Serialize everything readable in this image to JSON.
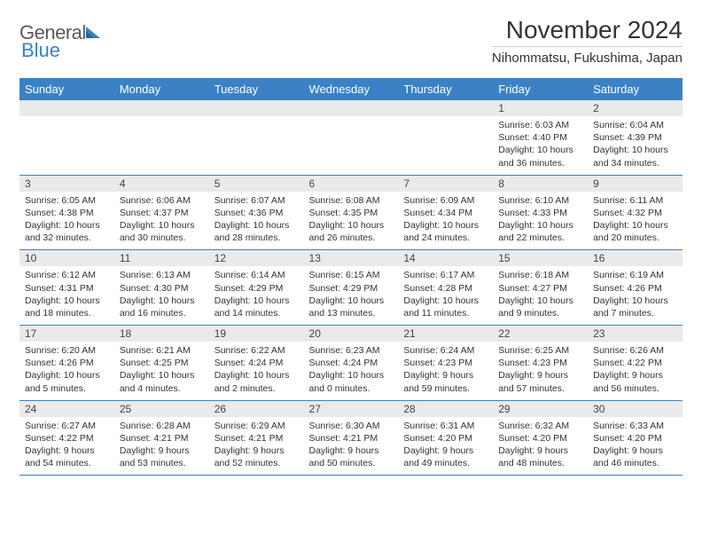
{
  "logo": {
    "text_gray": "General",
    "text_blue": "Blue"
  },
  "title": "November 2024",
  "location": "Nihommatsu, Fukushima, Japan",
  "colors": {
    "header_bg": "#3b82c4",
    "header_text": "#ffffff",
    "daynum_bg": "#eaeaea",
    "border": "#3b82c4",
    "text": "#333333",
    "logo_gray": "#5a5a5a",
    "logo_blue": "#3b82c4"
  },
  "typography": {
    "title_fontsize": 28,
    "location_fontsize": 15,
    "weekday_fontsize": 13,
    "daynum_fontsize": 12,
    "detail_fontsize": 10.5
  },
  "weekdays": [
    "Sunday",
    "Monday",
    "Tuesday",
    "Wednesday",
    "Thursday",
    "Friday",
    "Saturday"
  ],
  "weeks": [
    [
      null,
      null,
      null,
      null,
      null,
      {
        "day": "1",
        "sunrise": "Sunrise: 6:03 AM",
        "sunset": "Sunset: 4:40 PM",
        "daylight": "Daylight: 10 hours and 36 minutes."
      },
      {
        "day": "2",
        "sunrise": "Sunrise: 6:04 AM",
        "sunset": "Sunset: 4:39 PM",
        "daylight": "Daylight: 10 hours and 34 minutes."
      }
    ],
    [
      {
        "day": "3",
        "sunrise": "Sunrise: 6:05 AM",
        "sunset": "Sunset: 4:38 PM",
        "daylight": "Daylight: 10 hours and 32 minutes."
      },
      {
        "day": "4",
        "sunrise": "Sunrise: 6:06 AM",
        "sunset": "Sunset: 4:37 PM",
        "daylight": "Daylight: 10 hours and 30 minutes."
      },
      {
        "day": "5",
        "sunrise": "Sunrise: 6:07 AM",
        "sunset": "Sunset: 4:36 PM",
        "daylight": "Daylight: 10 hours and 28 minutes."
      },
      {
        "day": "6",
        "sunrise": "Sunrise: 6:08 AM",
        "sunset": "Sunset: 4:35 PM",
        "daylight": "Daylight: 10 hours and 26 minutes."
      },
      {
        "day": "7",
        "sunrise": "Sunrise: 6:09 AM",
        "sunset": "Sunset: 4:34 PM",
        "daylight": "Daylight: 10 hours and 24 minutes."
      },
      {
        "day": "8",
        "sunrise": "Sunrise: 6:10 AM",
        "sunset": "Sunset: 4:33 PM",
        "daylight": "Daylight: 10 hours and 22 minutes."
      },
      {
        "day": "9",
        "sunrise": "Sunrise: 6:11 AM",
        "sunset": "Sunset: 4:32 PM",
        "daylight": "Daylight: 10 hours and 20 minutes."
      }
    ],
    [
      {
        "day": "10",
        "sunrise": "Sunrise: 6:12 AM",
        "sunset": "Sunset: 4:31 PM",
        "daylight": "Daylight: 10 hours and 18 minutes."
      },
      {
        "day": "11",
        "sunrise": "Sunrise: 6:13 AM",
        "sunset": "Sunset: 4:30 PM",
        "daylight": "Daylight: 10 hours and 16 minutes."
      },
      {
        "day": "12",
        "sunrise": "Sunrise: 6:14 AM",
        "sunset": "Sunset: 4:29 PM",
        "daylight": "Daylight: 10 hours and 14 minutes."
      },
      {
        "day": "13",
        "sunrise": "Sunrise: 6:15 AM",
        "sunset": "Sunset: 4:29 PM",
        "daylight": "Daylight: 10 hours and 13 minutes."
      },
      {
        "day": "14",
        "sunrise": "Sunrise: 6:17 AM",
        "sunset": "Sunset: 4:28 PM",
        "daylight": "Daylight: 10 hours and 11 minutes."
      },
      {
        "day": "15",
        "sunrise": "Sunrise: 6:18 AM",
        "sunset": "Sunset: 4:27 PM",
        "daylight": "Daylight: 10 hours and 9 minutes."
      },
      {
        "day": "16",
        "sunrise": "Sunrise: 6:19 AM",
        "sunset": "Sunset: 4:26 PM",
        "daylight": "Daylight: 10 hours and 7 minutes."
      }
    ],
    [
      {
        "day": "17",
        "sunrise": "Sunrise: 6:20 AM",
        "sunset": "Sunset: 4:26 PM",
        "daylight": "Daylight: 10 hours and 5 minutes."
      },
      {
        "day": "18",
        "sunrise": "Sunrise: 6:21 AM",
        "sunset": "Sunset: 4:25 PM",
        "daylight": "Daylight: 10 hours and 4 minutes."
      },
      {
        "day": "19",
        "sunrise": "Sunrise: 6:22 AM",
        "sunset": "Sunset: 4:24 PM",
        "daylight": "Daylight: 10 hours and 2 minutes."
      },
      {
        "day": "20",
        "sunrise": "Sunrise: 6:23 AM",
        "sunset": "Sunset: 4:24 PM",
        "daylight": "Daylight: 10 hours and 0 minutes."
      },
      {
        "day": "21",
        "sunrise": "Sunrise: 6:24 AM",
        "sunset": "Sunset: 4:23 PM",
        "daylight": "Daylight: 9 hours and 59 minutes."
      },
      {
        "day": "22",
        "sunrise": "Sunrise: 6:25 AM",
        "sunset": "Sunset: 4:23 PM",
        "daylight": "Daylight: 9 hours and 57 minutes."
      },
      {
        "day": "23",
        "sunrise": "Sunrise: 6:26 AM",
        "sunset": "Sunset: 4:22 PM",
        "daylight": "Daylight: 9 hours and 56 minutes."
      }
    ],
    [
      {
        "day": "24",
        "sunrise": "Sunrise: 6:27 AM",
        "sunset": "Sunset: 4:22 PM",
        "daylight": "Daylight: 9 hours and 54 minutes."
      },
      {
        "day": "25",
        "sunrise": "Sunrise: 6:28 AM",
        "sunset": "Sunset: 4:21 PM",
        "daylight": "Daylight: 9 hours and 53 minutes."
      },
      {
        "day": "26",
        "sunrise": "Sunrise: 6:29 AM",
        "sunset": "Sunset: 4:21 PM",
        "daylight": "Daylight: 9 hours and 52 minutes."
      },
      {
        "day": "27",
        "sunrise": "Sunrise: 6:30 AM",
        "sunset": "Sunset: 4:21 PM",
        "daylight": "Daylight: 9 hours and 50 minutes."
      },
      {
        "day": "28",
        "sunrise": "Sunrise: 6:31 AM",
        "sunset": "Sunset: 4:20 PM",
        "daylight": "Daylight: 9 hours and 49 minutes."
      },
      {
        "day": "29",
        "sunrise": "Sunrise: 6:32 AM",
        "sunset": "Sunset: 4:20 PM",
        "daylight": "Daylight: 9 hours and 48 minutes."
      },
      {
        "day": "30",
        "sunrise": "Sunrise: 6:33 AM",
        "sunset": "Sunset: 4:20 PM",
        "daylight": "Daylight: 9 hours and 46 minutes."
      }
    ]
  ]
}
